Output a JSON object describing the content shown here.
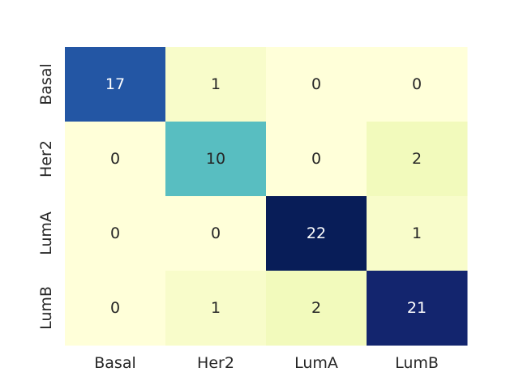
{
  "chart_data": {
    "type": "heatmap",
    "title": "",
    "xlabel": "",
    "ylabel": "",
    "x_categories": [
      "Basal",
      "Her2",
      "LumA",
      "LumB"
    ],
    "y_categories": [
      "Basal",
      "Her2",
      "LumA",
      "LumB"
    ],
    "values": [
      [
        17,
        1,
        0,
        0
      ],
      [
        0,
        10,
        0,
        2
      ],
      [
        0,
        0,
        22,
        1
      ],
      [
        0,
        1,
        2,
        21
      ]
    ],
    "colormap": "YlGnBu",
    "value_range": [
      0,
      22
    ],
    "colorbar": false,
    "grid": false
  }
}
